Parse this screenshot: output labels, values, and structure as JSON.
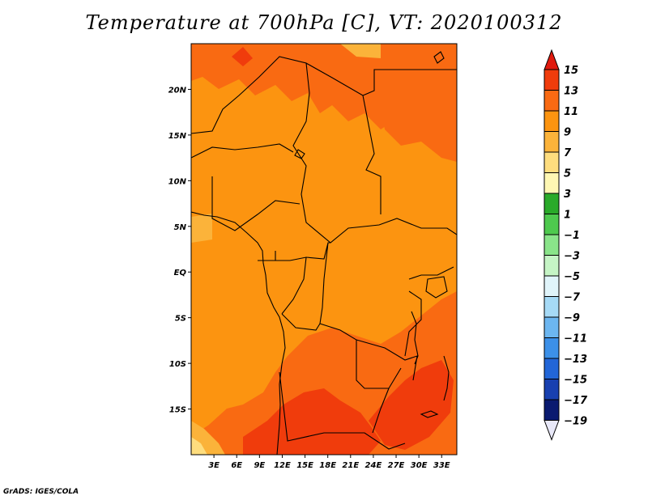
{
  "title": "Temperature at 700hPa [C], VT: 2020100312",
  "credit": "GrADS: IGES/COLA",
  "map": {
    "lat_range": [
      -20,
      25
    ],
    "lon_range": [
      0,
      35
    ],
    "lat_ticks": [
      {
        "value": 20,
        "label": "20N"
      },
      {
        "value": 15,
        "label": "15N"
      },
      {
        "value": 10,
        "label": "10N"
      },
      {
        "value": 5,
        "label": "5N"
      },
      {
        "value": 0,
        "label": "EQ"
      },
      {
        "value": -5,
        "label": "5S"
      },
      {
        "value": -10,
        "label": "10S"
      },
      {
        "value": -15,
        "label": "15S"
      }
    ],
    "lon_ticks": [
      {
        "value": 3,
        "label": "3E"
      },
      {
        "value": 6,
        "label": "6E"
      },
      {
        "value": 9,
        "label": "9E"
      },
      {
        "value": 12,
        "label": "12E"
      },
      {
        "value": 15,
        "label": "15E"
      },
      {
        "value": 18,
        "label": "18E"
      },
      {
        "value": 21,
        "label": "21E"
      },
      {
        "value": 24,
        "label": "24E"
      },
      {
        "value": 27,
        "label": "27E"
      },
      {
        "value": 30,
        "label": "30E"
      },
      {
        "value": 33,
        "label": "33E"
      }
    ]
  },
  "colorbar": {
    "levels": [
      15,
      13,
      11,
      9,
      7,
      5,
      3,
      1,
      -1,
      -3,
      -5,
      -7,
      -9,
      -11,
      -13,
      -15,
      -17,
      -19
    ],
    "labels": [
      "15",
      "13",
      "11",
      "9",
      "7",
      "5",
      "3",
      "1",
      "−1",
      "−3",
      "−5",
      "−7",
      "−9",
      "−11",
      "−13",
      "−15",
      "−17",
      "−19"
    ],
    "colors": [
      "#e01a0e",
      "#f03c0c",
      "#f96a12",
      "#fc9410",
      "#fbb33a",
      "#fedd7e",
      "#fef7b3",
      "#2aaa2a",
      "#4ec94e",
      "#8ae48a",
      "#c5f4c5",
      "#e0f4fa",
      "#a6daf6",
      "#6cb6f0",
      "#3c90e8",
      "#2266d8",
      "#1840b0",
      "#0a1a70",
      "#e8e8f8"
    ]
  }
}
